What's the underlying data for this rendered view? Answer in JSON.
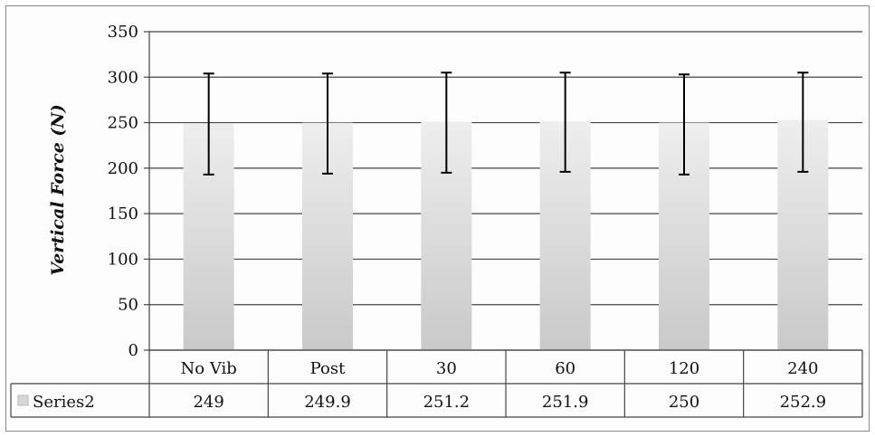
{
  "chart_data": {
    "type": "bar",
    "categories": [
      "No Vib",
      "Post",
      "30",
      "60",
      "120",
      "240"
    ],
    "series": [
      {
        "name": "Series2",
        "values": [
          249,
          249.9,
          251.2,
          251.9,
          250,
          252.9
        ],
        "error_low": [
          193,
          194,
          195,
          196,
          193,
          196
        ],
        "error_high": [
          304,
          304,
          305,
          305,
          303,
          305
        ]
      }
    ],
    "value_labels": [
      "249",
      "249.9",
      "251.2",
      "251.9",
      "250",
      "252.9"
    ],
    "ylabel": "Vertical Force (N)",
    "ylim": [
      0,
      350
    ],
    "yticks": [
      "0",
      "50",
      "100",
      "150",
      "200",
      "250",
      "300",
      "350"
    ],
    "grid": true,
    "legend": "data-table"
  }
}
